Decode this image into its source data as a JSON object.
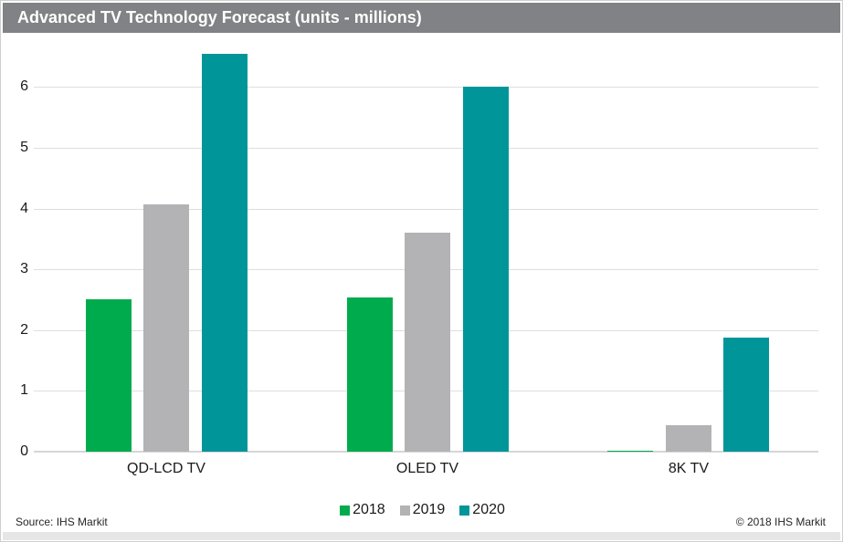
{
  "title": "Advanced TV Technology Forecast (units - millions)",
  "footer": {
    "source": "Source: IHS Markit",
    "copyright": "© 2018 IHS Markit"
  },
  "colors": {
    "title_bar": "#808285",
    "series_2018": "#00AB4E",
    "series_2019": "#B3B3B6",
    "series_2020": "#009599",
    "gridline": "#DEDEDE",
    "axis_line": "#D6D6D6",
    "footer_strip": "#E6E6E6"
  },
  "chart_data": {
    "type": "bar",
    "title": "Advanced TV Technology Forecast (units - millions)",
    "categories": [
      "QD-LCD TV",
      "OLED TV",
      "8K TV"
    ],
    "series": [
      {
        "name": "2018",
        "color": "#00AB4E",
        "values": [
          2.51,
          2.54,
          0.02
        ]
      },
      {
        "name": "2019",
        "color": "#B3B3B6",
        "values": [
          4.07,
          3.6,
          0.43
        ]
      },
      {
        "name": "2020",
        "color": "#009599",
        "values": [
          6.55,
          6.0,
          1.88
        ]
      }
    ],
    "xlabel": "",
    "ylabel": "",
    "ylim": [
      0,
      6.8
    ],
    "yticks": [
      0,
      1,
      2,
      3,
      4,
      5,
      6
    ],
    "grid": true,
    "legend_position": "bottom"
  }
}
